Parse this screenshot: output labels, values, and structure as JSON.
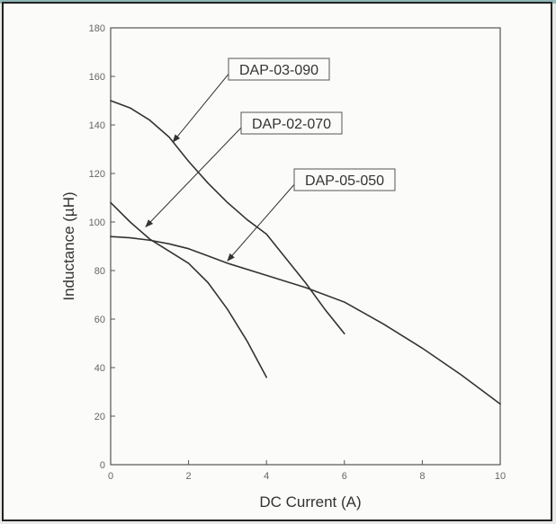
{
  "chart_data": {
    "type": "line",
    "title": "",
    "xlabel": "DC Current (A)",
    "ylabel": "Inductance (µH)",
    "xlim": [
      0,
      10
    ],
    "ylim": [
      0,
      180
    ],
    "xticks": [
      0,
      2,
      4,
      6,
      8,
      10
    ],
    "yticks": [
      0,
      20,
      40,
      60,
      80,
      100,
      120,
      140,
      160,
      180
    ],
    "grid": false,
    "series": [
      {
        "name": "DAP-03-090",
        "x": [
          0,
          0.5,
          1.0,
          1.5,
          2.0,
          2.5,
          3.0,
          3.5,
          4.0,
          4.5,
          5.0,
          5.5,
          6.0
        ],
        "y": [
          150,
          147,
          142,
          135,
          125,
          116,
          108,
          101,
          95,
          85,
          75,
          64,
          54
        ]
      },
      {
        "name": "DAP-02-070",
        "x": [
          0,
          0.5,
          1.0,
          1.5,
          2.0,
          2.5,
          3.0,
          3.5,
          4.0
        ],
        "y": [
          108,
          100,
          93,
          88,
          83,
          75,
          64,
          51,
          36
        ]
      },
      {
        "name": "DAP-05-050",
        "x": [
          0,
          0.5,
          1.0,
          1.5,
          2.0,
          2.5,
          3.0,
          4.0,
          5.0,
          6.0,
          7.0,
          8.0,
          9.0,
          10.0
        ],
        "y": [
          94,
          93.5,
          92.5,
          91,
          89,
          86,
          83,
          78,
          73,
          67,
          58,
          48,
          37,
          25
        ]
      }
    ],
    "annotations": [
      {
        "text": "DAP-03-090",
        "points_to": {
          "x": 1.6,
          "y": 133
        }
      },
      {
        "text": "DAP-02-070",
        "points_to": {
          "x": 0.9,
          "y": 98
        }
      },
      {
        "text": "DAP-05-050",
        "points_to": {
          "x": 3.0,
          "y": 84
        }
      }
    ],
    "colors": {
      "line": "#333333",
      "axis": "#555555",
      "background": "#fbfbf9"
    }
  }
}
